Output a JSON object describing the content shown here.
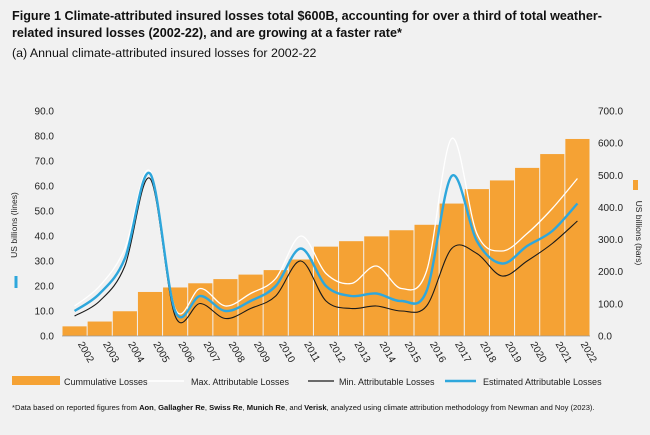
{
  "title": "Figure 1 Climate-attributed insured losses total $600B, accounting for over a third of total weather-related insured losses (2002-22), and are growing at a faster rate*",
  "subtitle": "(a) Annual climate-attributed insured losses for 2002-22",
  "footnote": {
    "before": "*Data based on reported figures from ",
    "s1": "Aon",
    "c1": ", ",
    "s2": "Gallagher Re",
    "c2": ", ",
    "s3": "Swiss Re",
    "c3": ", ",
    "s4": "Munich Re",
    "c4": ", and ",
    "s5": "Verisk",
    "after": ", analyzed using climate attribution methodology from Newman and Noy (2023)."
  },
  "colors": {
    "bars": "#f5a234",
    "max_line": "#ffffff",
    "min_line": "#1a1a1a",
    "estimated_line": "#2ea7dc",
    "background": "#f1f1f1"
  },
  "chart_data": {
    "type": "bar+line",
    "categories": [
      "2002",
      "2003",
      "2004",
      "2005",
      "2006",
      "2007",
      "2008",
      "2009",
      "2010",
      "2011",
      "2012",
      "2013",
      "2014",
      "2015",
      "2016",
      "2017",
      "2018",
      "2019",
      "2020",
      "2021",
      "2022"
    ],
    "left_axis": {
      "label": "US billions (lines)",
      "ylim": [
        0,
        90
      ],
      "ticks": [
        "0.0",
        "10.0",
        "20.0",
        "30.0",
        "40.0",
        "50.0",
        "60.0",
        "70.0",
        "80.0",
        "90.0"
      ]
    },
    "right_axis": {
      "label": "US billions (bars)",
      "ylim": [
        0,
        700
      ],
      "ticks": [
        "0.0",
        "100.0",
        "200.0",
        "300.0",
        "400.0",
        "500.0",
        "600.0",
        "700.0"
      ]
    },
    "bars": {
      "name": "Cummulative Losses",
      "axis": "right",
      "values": [
        30,
        45,
        77,
        137,
        151,
        164,
        177,
        191,
        205,
        238,
        278,
        295,
        310,
        329,
        346,
        412,
        457,
        484,
        523,
        566,
        613
      ]
    },
    "series": [
      {
        "name": "Max. Attributable Losses",
        "axis": "left",
        "values": [
          12,
          20,
          35,
          66,
          11,
          19,
          12,
          17,
          23,
          40,
          25,
          21,
          28,
          19,
          26,
          79,
          41,
          34,
          41,
          51,
          63
        ]
      },
      {
        "name": "Min. Attributable Losses",
        "axis": "left",
        "values": [
          8,
          14,
          28,
          63,
          8,
          13,
          7,
          11,
          16,
          30,
          14,
          11,
          12,
          10,
          12,
          35,
          33,
          24,
          30,
          37,
          46
        ]
      },
      {
        "name": "Estimated Attributable Losses",
        "axis": "left",
        "values": [
          10,
          17,
          31,
          65,
          10,
          16,
          10,
          14,
          20,
          35,
          20,
          16,
          17,
          14,
          18,
          64,
          38,
          29,
          36,
          42,
          53
        ]
      }
    ],
    "legend": [
      "Cummulative Losses",
      "Max. Attributable Losses",
      "Min. Attributable Losses",
      "Estimated Attributable Losses"
    ],
    "legend_position": "bottom",
    "grid": false
  }
}
